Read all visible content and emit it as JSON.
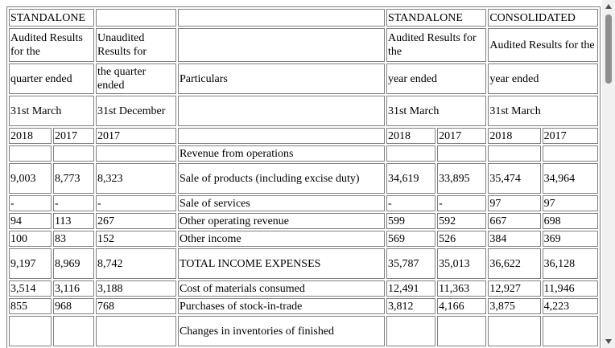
{
  "header": {
    "r1": {
      "standalone_left": "STANDALONE",
      "standalone_right": "STANDALONE",
      "consolidated": "CONSOLIDATED"
    },
    "r2": {
      "audited_q": "Audited Results for the",
      "unaudited": "Unaudited Results for",
      "audited_y": "Audited Results for the",
      "audited_c": "Audited Results for the"
    },
    "r3": {
      "quarter_ended": "quarter ended",
      "the_quarter_ended": "the quarter ended",
      "particulars": "Particulars",
      "year_ended_s": "year ended",
      "year_ended_c": "year ended"
    },
    "r4": {
      "march_q": "31st March",
      "december": "31st December",
      "march_s": "31st March",
      "march_c": "31st March"
    },
    "r5": {
      "y2018a": "2018",
      "y2017a": "2017",
      "y2017b": "2017",
      "y2018s": "2018",
      "y2017s": "2017",
      "y2018c": "2018",
      "y2017c": "2017"
    }
  },
  "rows": [
    {
      "c1": "",
      "c2": "",
      "c3": "",
      "p": "Revenue from operations",
      "c5": "",
      "c6": "",
      "c7": "",
      "c8": ""
    },
    {
      "c1": "9,003",
      "c2": "8,773",
      "c3": "8,323",
      "p": "Sale of products (including excise duty)",
      "c5": "34,619",
      "c6": "33,895",
      "c7": "35,474",
      "c8": "34,964"
    },
    {
      "c1": "-",
      "c2": "-",
      "c3": "-",
      "p": "Sale of services",
      "c5": "-",
      "c6": "-",
      "c7": "97",
      "c8": "97"
    },
    {
      "c1": "94",
      "c2": "113",
      "c3": "267",
      "p": "Other operating revenue",
      "c5": "599",
      "c6": "592",
      "c7": "667",
      "c8": "698"
    },
    {
      "c1": "100",
      "c2": "83",
      "c3": "152",
      "p": "Other income",
      "c5": "569",
      "c6": "526",
      "c7": "384",
      "c8": "369"
    },
    {
      "c1": "9,197",
      "c2": "8,969",
      "c3": "8,742",
      "p": "TOTAL INCOME EXPENSES",
      "c5": "35,787",
      "c6": "35,013",
      "c7": "36,622",
      "c8": "36,128"
    },
    {
      "c1": "3,514",
      "c2": "3,116",
      "c3": "3,188",
      "p": "Cost of materials consumed",
      "c5": "12,491",
      "c6": "11,363",
      "c7": "12,927",
      "c8": "11,946"
    },
    {
      "c1": "855",
      "c2": "968",
      "c3": "768",
      "p": "Purchases of stock-in-trade",
      "c5": "3,812",
      "c6": "4,166",
      "c7": "3,875",
      "c8": "4,223"
    },
    {
      "c1": "",
      "c2": "",
      "c3": "",
      "p": "Changes in inventories of finished",
      "c5": "",
      "c6": "",
      "c7": "",
      "c8": ""
    }
  ]
}
